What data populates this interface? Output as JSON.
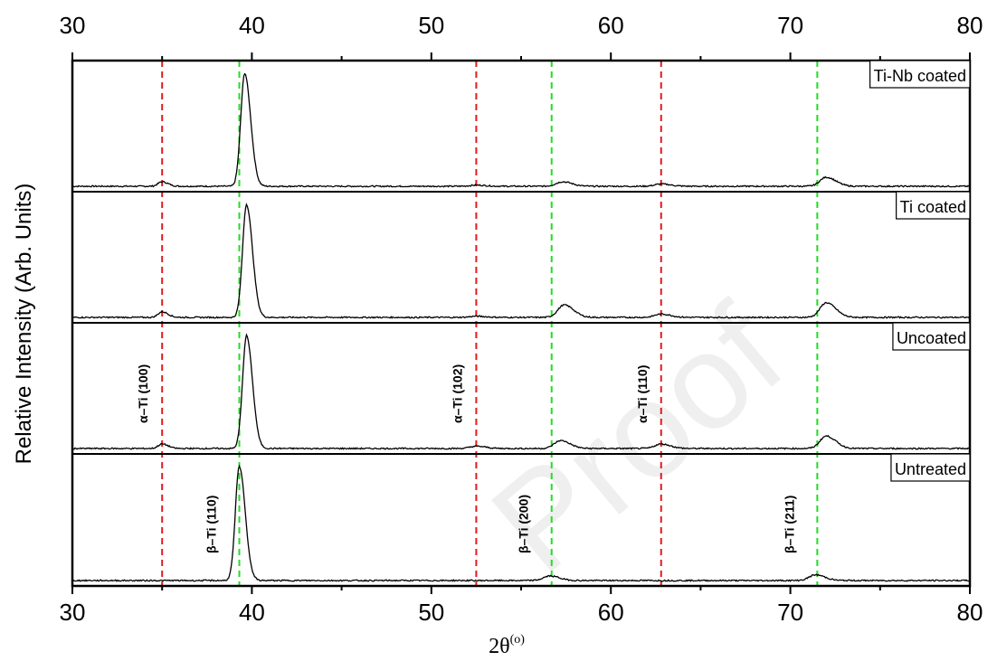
{
  "chart_data": {
    "type": "line",
    "xlabel": "2θ",
    "xlabel_sup": "(o)",
    "ylabel": "Relative Intensity (Arb. Units)",
    "xlim": [
      30,
      80
    ],
    "xticks": [
      30,
      40,
      50,
      60,
      70,
      80
    ],
    "grid": false,
    "watermark": "Proof",
    "series": [
      {
        "name": "Ti-Nb coated",
        "color": "#000000",
        "peaks": [
          [
            35.0,
            0.04
          ],
          [
            39.6,
            1.0
          ],
          [
            52.5,
            0.01
          ],
          [
            57.3,
            0.04
          ],
          [
            62.8,
            0.02
          ],
          [
            72.0,
            0.08
          ]
        ]
      },
      {
        "name": "Ti coated",
        "color": "#000000",
        "peaks": [
          [
            35.0,
            0.05
          ],
          [
            39.7,
            1.0
          ],
          [
            52.5,
            0.01
          ],
          [
            57.4,
            0.11
          ],
          [
            62.8,
            0.03
          ],
          [
            72.0,
            0.13
          ]
        ]
      },
      {
        "name": "Uncoated",
        "color": "#000000",
        "peaks": [
          [
            35.0,
            0.04
          ],
          [
            39.7,
            1.0
          ],
          [
            52.5,
            0.02
          ],
          [
            57.2,
            0.07
          ],
          [
            62.8,
            0.04
          ],
          [
            72.0,
            0.11
          ]
        ]
      },
      {
        "name": "Untreated",
        "color": "#000000",
        "peaks": [
          [
            39.3,
            1.0
          ],
          [
            56.6,
            0.04
          ],
          [
            71.4,
            0.05
          ]
        ]
      }
    ],
    "reference_lines": {
      "alpha": {
        "color": "#e41a1c",
        "positions": [
          35.0,
          52.5,
          62.8
        ],
        "labels": [
          "α–Ti (100)",
          "α–Ti (102)",
          "α–Ti (110)"
        ]
      },
      "beta": {
        "color": "#22dd22",
        "positions": [
          39.3,
          56.7,
          71.5
        ],
        "labels": [
          "β–Ti (110)",
          "β–Ti (200)",
          "β–Ti (211)"
        ]
      }
    }
  }
}
